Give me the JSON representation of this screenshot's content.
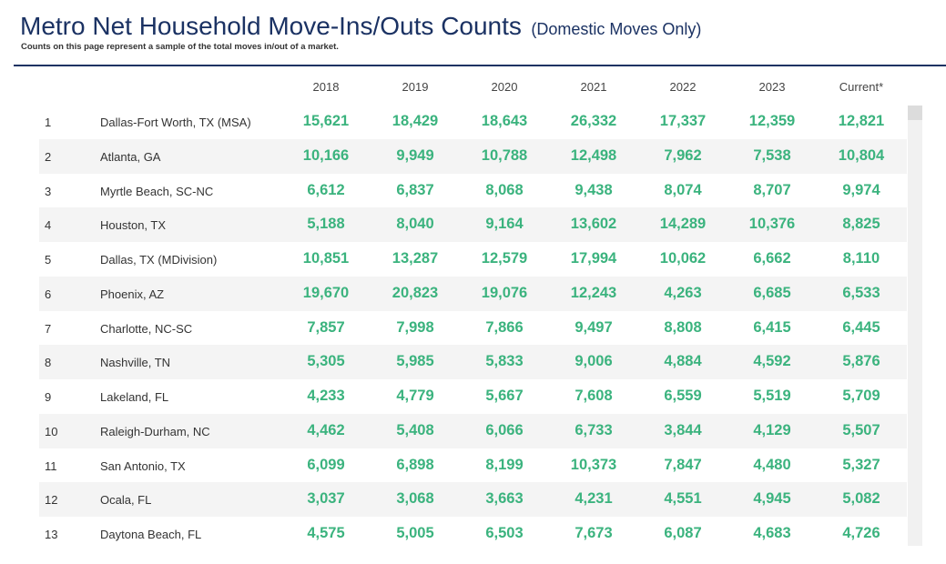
{
  "title": "Metro Net Household Move-Ins/Outs Counts",
  "title_suffix": "(Domestic Moves Only)",
  "note": "Counts on this page represent a sample of the total moves in/out of a market.",
  "columns": [
    "2018",
    "2019",
    "2020",
    "2021",
    "2022",
    "2023",
    "Current*"
  ],
  "colors": {
    "title": "#1b3263",
    "value": "#3bb37e",
    "alt_row": "#f4f4f4"
  },
  "rows": [
    {
      "rank": "1",
      "name": "Dallas-Fort Worth, TX (MSA)",
      "values": [
        "15,621",
        "18,429",
        "18,643",
        "26,332",
        "17,337",
        "12,359",
        "12,821"
      ]
    },
    {
      "rank": "2",
      "name": "Atlanta, GA",
      "values": [
        "10,166",
        "9,949",
        "10,788",
        "12,498",
        "7,962",
        "7,538",
        "10,804"
      ]
    },
    {
      "rank": "3",
      "name": "Myrtle Beach, SC-NC",
      "values": [
        "6,612",
        "6,837",
        "8,068",
        "9,438",
        "8,074",
        "8,707",
        "9,974"
      ]
    },
    {
      "rank": "4",
      "name": "Houston, TX",
      "values": [
        "5,188",
        "8,040",
        "9,164",
        "13,602",
        "14,289",
        "10,376",
        "8,825"
      ]
    },
    {
      "rank": "5",
      "name": "Dallas, TX (MDivision)",
      "values": [
        "10,851",
        "13,287",
        "12,579",
        "17,994",
        "10,062",
        "6,662",
        "8,110"
      ]
    },
    {
      "rank": "6",
      "name": "Phoenix, AZ",
      "values": [
        "19,670",
        "20,823",
        "19,076",
        "12,243",
        "4,263",
        "6,685",
        "6,533"
      ]
    },
    {
      "rank": "7",
      "name": "Charlotte, NC-SC",
      "values": [
        "7,857",
        "7,998",
        "7,866",
        "9,497",
        "8,808",
        "6,415",
        "6,445"
      ]
    },
    {
      "rank": "8",
      "name": "Nashville, TN",
      "values": [
        "5,305",
        "5,985",
        "5,833",
        "9,006",
        "4,884",
        "4,592",
        "5,876"
      ]
    },
    {
      "rank": "9",
      "name": "Lakeland, FL",
      "values": [
        "4,233",
        "4,779",
        "5,667",
        "7,608",
        "6,559",
        "5,519",
        "5,709"
      ]
    },
    {
      "rank": "10",
      "name": "Raleigh-Durham, NC",
      "values": [
        "4,462",
        "5,408",
        "6,066",
        "6,733",
        "3,844",
        "4,129",
        "5,507"
      ]
    },
    {
      "rank": "11",
      "name": "San Antonio, TX",
      "values": [
        "6,099",
        "6,898",
        "8,199",
        "10,373",
        "7,847",
        "4,480",
        "5,327"
      ]
    },
    {
      "rank": "12",
      "name": "Ocala, FL",
      "values": [
        "3,037",
        "3,068",
        "3,663",
        "4,231",
        "4,551",
        "4,945",
        "5,082"
      ]
    },
    {
      "rank": "13",
      "name": "Daytona Beach, FL",
      "values": [
        "4,575",
        "5,005",
        "6,503",
        "7,673",
        "6,087",
        "4,683",
        "4,726"
      ]
    }
  ]
}
